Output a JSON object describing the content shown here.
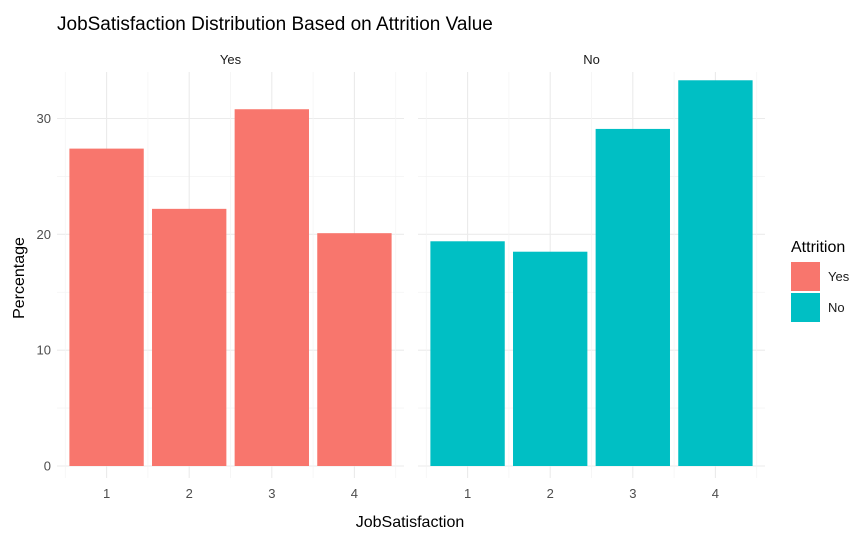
{
  "chart_data": {
    "type": "bar",
    "title": "JobSatisfaction Distribution Based on Attrition Value",
    "xlabel": "JobSatisfaction",
    "ylabel": "Percentage",
    "ylim": [
      0,
      34.5
    ],
    "yticks": [
      0,
      10,
      20,
      30
    ],
    "categories": [
      "1",
      "2",
      "3",
      "4"
    ],
    "grid": true,
    "legend": {
      "title": "Attrition",
      "placement": "right",
      "entries": [
        {
          "label": "Yes",
          "color": "#F8766D"
        },
        {
          "label": "No",
          "color": "#00BFC4"
        }
      ]
    },
    "facets": [
      {
        "label": "Yes",
        "color": "#F8766D",
        "values": [
          27.4,
          22.2,
          30.8,
          20.1
        ]
      },
      {
        "label": "No",
        "color": "#00BFC4",
        "values": [
          19.4,
          18.5,
          29.1,
          33.3
        ]
      }
    ]
  }
}
